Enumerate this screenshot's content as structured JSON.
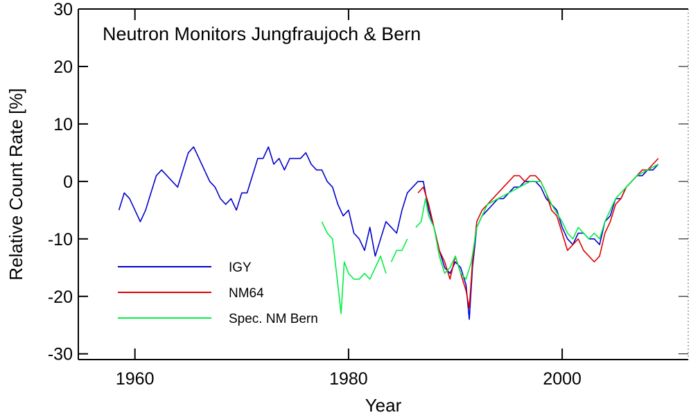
{
  "chart_data": {
    "type": "line",
    "title": "Neutron Monitors Jungfraujoch & Bern",
    "x_label": "Year",
    "y_label": "Relative Count Rate [%]",
    "xlim": [
      1954.7,
      2011.8
    ],
    "ylim": [
      -31,
      30
    ],
    "xticks": [
      1960,
      1980,
      2000
    ],
    "yticks": [
      -30,
      -20,
      -10,
      0,
      10,
      20,
      30
    ],
    "legend": "lower left",
    "series": [
      {
        "name": "IGY",
        "color": "#0000cc",
        "x": [
          1958.5,
          1959,
          1959.5,
          1960,
          1960.5,
          1961,
          1961.5,
          1962,
          1962.5,
          1963,
          1963.5,
          1964,
          1964.5,
          1965,
          1965.5,
          1966,
          1966.5,
          1967,
          1967.5,
          1968,
          1968.5,
          1969,
          1969.5,
          1970,
          1970.5,
          1971,
          1971.5,
          1972,
          1972.5,
          1973,
          1973.5,
          1974,
          1974.5,
          1975,
          1975.5,
          1976,
          1976.5,
          1977,
          1977.5,
          1978,
          1978.5,
          1979,
          1979.5,
          1980,
          1980.5,
          1981,
          1981.5,
          1982,
          1982.5,
          1983,
          1983.5,
          1984,
          1984.5,
          1985,
          1985.5,
          1986,
          1986.5,
          1987,
          1987.5,
          1988,
          1988.5,
          1989,
          1989.5,
          1990,
          1990.5,
          1991,
          1991.3,
          1991.6,
          1992,
          1992.5,
          1993,
          1993.5,
          1994,
          1994.5,
          1995,
          1995.5,
          1996,
          1996.5,
          1997,
          1997.5,
          1998,
          1998.5,
          1999,
          1999.5,
          2000,
          2000.5,
          2001,
          2001.5,
          2002,
          2002.5,
          2003,
          2003.5,
          2004,
          2004.5,
          2005,
          2005.5,
          2006,
          2006.5,
          2007,
          2007.5,
          2008,
          2008.5,
          2009
        ],
        "values": [
          -5,
          -2,
          -3,
          -5,
          -7,
          -5,
          -2,
          1,
          2,
          1,
          0,
          -1,
          2,
          5,
          6,
          4,
          2,
          0,
          -1,
          -3,
          -4,
          -3,
          -5,
          -2,
          -2,
          1,
          4,
          4,
          6,
          3,
          4,
          2,
          4,
          4,
          4,
          5,
          3,
          2,
          2,
          0,
          -1,
          -4,
          -6,
          -5,
          -9,
          -10,
          -12,
          -8,
          -13,
          -10,
          -7,
          -8,
          -9,
          -5,
          -2,
          -1,
          0,
          0,
          -5,
          -8,
          -12,
          -15,
          -16,
          -14,
          -15,
          -18,
          -24,
          -15,
          -8,
          -6,
          -5,
          -4,
          -3,
          -3,
          -2,
          -1,
          -1,
          0,
          0,
          0,
          -1,
          -3,
          -4,
          -5,
          -8,
          -10,
          -11,
          -9,
          -9,
          -10,
          -10,
          -11,
          -7,
          -6,
          -3,
          -3,
          -1,
          0,
          1,
          1,
          2,
          2,
          3
        ]
      },
      {
        "name": "NM64",
        "color": "#dd0000",
        "x": [
          1986.5,
          1987,
          1987.5,
          1988,
          1988.5,
          1989,
          1989.5,
          1990,
          1990.5,
          1991,
          1991.3,
          1991.6,
          1992,
          1992.5,
          1993,
          1993.5,
          1994,
          1994.5,
          1995,
          1995.5,
          1996,
          1996.5,
          1997,
          1997.5,
          1998,
          1998.5,
          1999,
          1999.5,
          2000,
          2000.5,
          2001,
          2001.5,
          2002,
          2002.5,
          2003,
          2003.5,
          2004,
          2004.5,
          2005,
          2005.5,
          2006,
          2006.5,
          2007,
          2007.5,
          2008,
          2008.5,
          2009
        ],
        "values": [
          -2,
          -1,
          -4,
          -8,
          -12,
          -14,
          -17,
          -13,
          -16,
          -19,
          -22,
          -14,
          -7,
          -5,
          -4,
          -3,
          -2,
          -1,
          0,
          1,
          1,
          0,
          1,
          1,
          0,
          -2,
          -5,
          -6,
          -9,
          -12,
          -11,
          -10,
          -12,
          -13,
          -14,
          -13,
          -9,
          -7,
          -4,
          -3,
          -1,
          0,
          1,
          2,
          2,
          3,
          4
        ]
      },
      {
        "name": "Spec. NM Bern",
        "color": "#00ee44",
        "x": [
          1977.5,
          1978,
          1978.5,
          1979,
          1979.3,
          1979.6,
          1980,
          1980.5,
          1981,
          1981.5,
          1982,
          1982.5,
          1983,
          1983.5,
          1983.8,
          1984,
          1984.5,
          1985,
          1985.5,
          1985.8,
          1986.3,
          1986.8,
          1987.2,
          1987.5,
          1988,
          1988.5,
          1989,
          1989.5,
          1990,
          1990.5,
          1991,
          1991.5,
          1992,
          1992.5,
          1993,
          1994,
          1995,
          1996,
          1997,
          1998,
          1999,
          2000,
          2000.5,
          2001,
          2001.5,
          2002,
          2002.5,
          2003,
          2003.5,
          2004,
          2004.5,
          2005,
          2006,
          2007,
          2008,
          2009
        ],
        "values": [
          -7,
          -9,
          -10,
          -18,
          -23,
          -14,
          -16,
          -17,
          -17,
          -16,
          -17,
          -15,
          -13,
          -16,
          null,
          -14,
          -12,
          -12,
          -10,
          null,
          -8,
          -7,
          -3,
          -6,
          -8,
          -13,
          -16,
          -15,
          -13,
          -16,
          -17,
          -14,
          -8,
          -6,
          -4,
          -3,
          -2,
          -1,
          0,
          0,
          -4,
          -7,
          -9,
          -10,
          -8,
          -9,
          -10,
          -9,
          -10,
          -7,
          -5,
          -3,
          -1,
          1,
          2,
          3
        ]
      }
    ]
  }
}
